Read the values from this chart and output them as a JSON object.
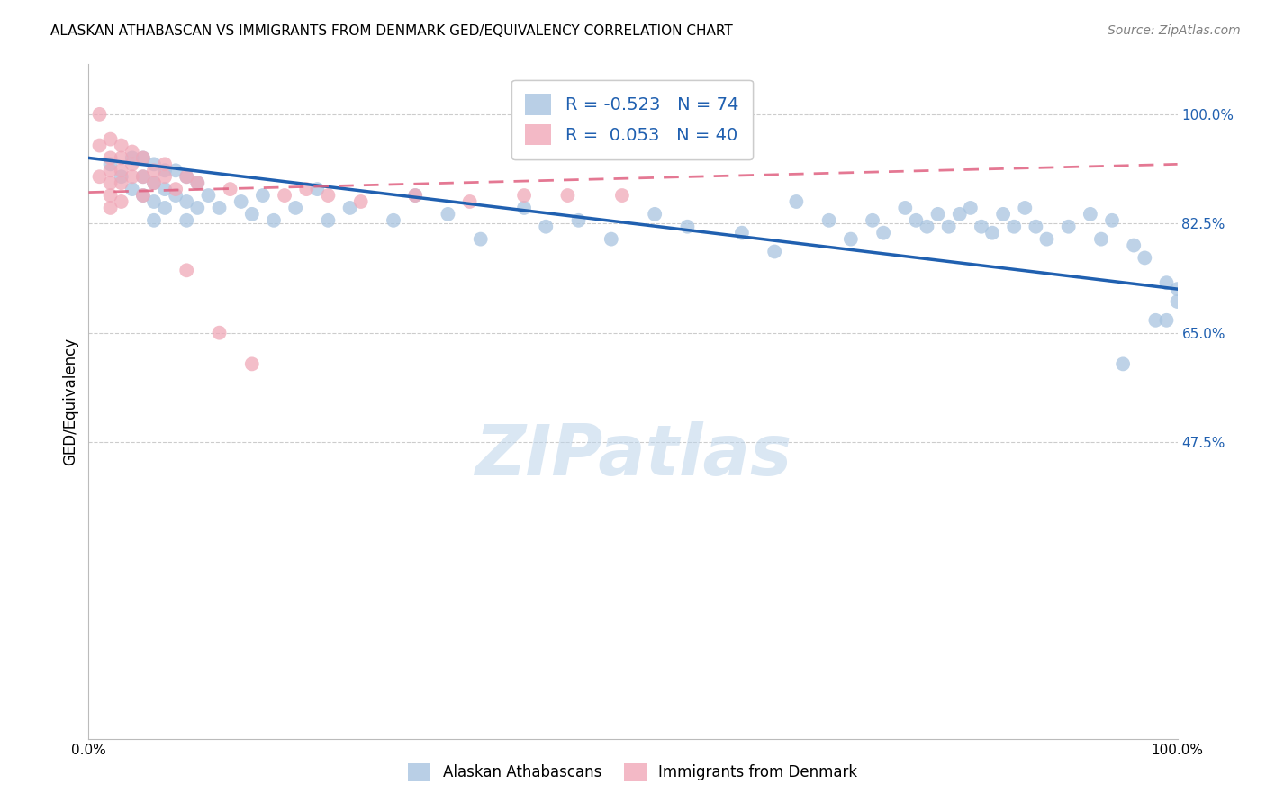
{
  "title": "ALASKAN ATHABASCAN VS IMMIGRANTS FROM DENMARK GED/EQUIVALENCY CORRELATION CHART",
  "source": "Source: ZipAtlas.com",
  "ylabel": "GED/Equivalency",
  "xlim": [
    0.0,
    1.0
  ],
  "ylim": [
    0.0,
    1.08
  ],
  "legend_r_blue": "-0.523",
  "legend_n_blue": "74",
  "legend_r_pink": "0.053",
  "legend_n_pink": "40",
  "blue_color": "#A8C4E0",
  "pink_color": "#F0A8B8",
  "trend_blue_color": "#2060B0",
  "trend_pink_color": "#E06080",
  "watermark": "ZIPatlas",
  "ytick_positions": [
    1.0,
    0.825,
    0.65,
    0.475
  ],
  "ytick_labels": [
    "100.0%",
    "82.5%",
    "65.0%",
    "47.5%"
  ],
  "blue_x": [
    0.02,
    0.03,
    0.04,
    0.04,
    0.05,
    0.05,
    0.05,
    0.06,
    0.06,
    0.06,
    0.06,
    0.07,
    0.07,
    0.07,
    0.08,
    0.08,
    0.09,
    0.09,
    0.09,
    0.1,
    0.1,
    0.11,
    0.12,
    0.14,
    0.15,
    0.16,
    0.17,
    0.19,
    0.21,
    0.22,
    0.24,
    0.28,
    0.3,
    0.33,
    0.36,
    0.4,
    0.42,
    0.45,
    0.48,
    0.52,
    0.55,
    0.6,
    0.63,
    0.65,
    0.68,
    0.7,
    0.72,
    0.73,
    0.75,
    0.76,
    0.77,
    0.78,
    0.79,
    0.8,
    0.81,
    0.82,
    0.83,
    0.84,
    0.85,
    0.86,
    0.87,
    0.88,
    0.9,
    0.92,
    0.93,
    0.94,
    0.95,
    0.96,
    0.97,
    0.98,
    0.99,
    0.99,
    1.0,
    1.0
  ],
  "blue_y": [
    0.92,
    0.9,
    0.93,
    0.88,
    0.93,
    0.9,
    0.87,
    0.92,
    0.89,
    0.86,
    0.83,
    0.91,
    0.88,
    0.85,
    0.91,
    0.87,
    0.9,
    0.86,
    0.83,
    0.89,
    0.85,
    0.87,
    0.85,
    0.86,
    0.84,
    0.87,
    0.83,
    0.85,
    0.88,
    0.83,
    0.85,
    0.83,
    0.87,
    0.84,
    0.8,
    0.85,
    0.82,
    0.83,
    0.8,
    0.84,
    0.82,
    0.81,
    0.78,
    0.86,
    0.83,
    0.8,
    0.83,
    0.81,
    0.85,
    0.83,
    0.82,
    0.84,
    0.82,
    0.84,
    0.85,
    0.82,
    0.81,
    0.84,
    0.82,
    0.85,
    0.82,
    0.8,
    0.82,
    0.84,
    0.8,
    0.83,
    0.6,
    0.79,
    0.77,
    0.67,
    0.73,
    0.67,
    0.72,
    0.7
  ],
  "pink_x": [
    0.01,
    0.01,
    0.01,
    0.02,
    0.02,
    0.02,
    0.02,
    0.02,
    0.02,
    0.03,
    0.03,
    0.03,
    0.03,
    0.03,
    0.04,
    0.04,
    0.04,
    0.05,
    0.05,
    0.05,
    0.06,
    0.06,
    0.07,
    0.07,
    0.08,
    0.09,
    0.09,
    0.1,
    0.12,
    0.13,
    0.15,
    0.18,
    0.2,
    0.22,
    0.25,
    0.3,
    0.35,
    0.4,
    0.44,
    0.49
  ],
  "pink_y": [
    0.9,
    0.95,
    1.0,
    0.96,
    0.93,
    0.91,
    0.89,
    0.87,
    0.85,
    0.95,
    0.93,
    0.91,
    0.89,
    0.86,
    0.94,
    0.92,
    0.9,
    0.93,
    0.9,
    0.87,
    0.91,
    0.89,
    0.92,
    0.9,
    0.88,
    0.9,
    0.75,
    0.89,
    0.65,
    0.88,
    0.6,
    0.87,
    0.88,
    0.87,
    0.86,
    0.87,
    0.86,
    0.87,
    0.87,
    0.87
  ],
  "blue_trend_x": [
    0.0,
    1.0
  ],
  "blue_trend_y": [
    0.93,
    0.72
  ],
  "pink_trend_x": [
    0.0,
    1.0
  ],
  "pink_trend_y": [
    0.875,
    0.92
  ]
}
